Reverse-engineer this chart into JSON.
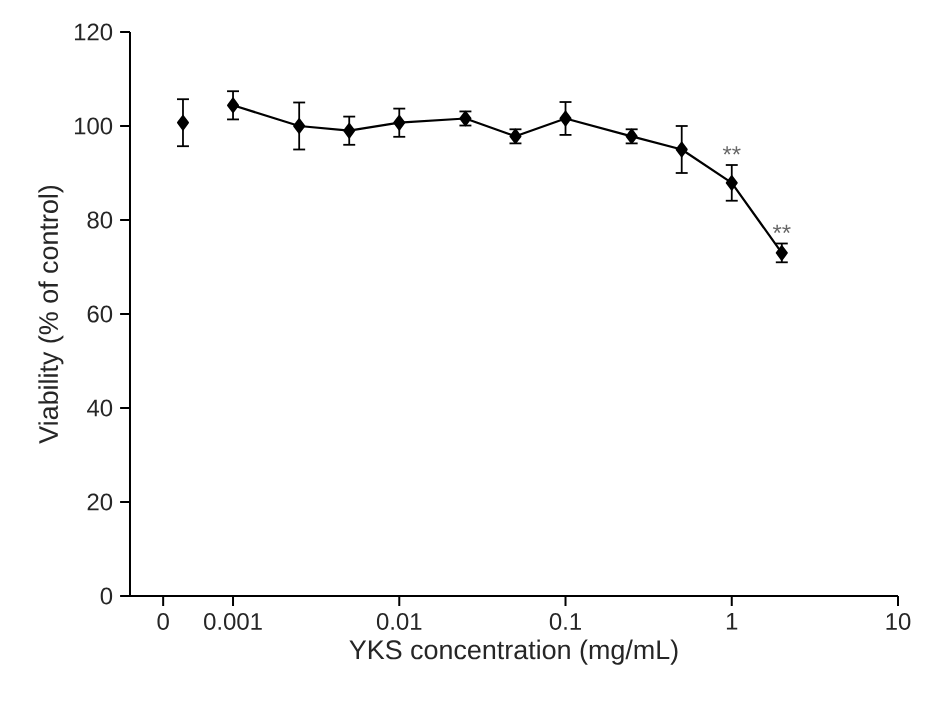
{
  "chart_data": {
    "type": "line",
    "xlabel": "YKS concentration (mg/mL)",
    "ylabel": "Viability (% of control)",
    "log": "x",
    "xlim": [
      0.00024,
      10
    ],
    "xticks": [
      {
        "value": 0.00038,
        "label": "0"
      },
      {
        "value": 0.001,
        "label": "0.001"
      },
      {
        "value": 0.01,
        "label": "0.01"
      },
      {
        "value": 0.1,
        "label": "0.1"
      },
      {
        "value": 1,
        "label": "1"
      },
      {
        "value": 10,
        "label": "10"
      }
    ],
    "ylim": [
      0,
      120
    ],
    "yticks": [
      0,
      20,
      40,
      60,
      80,
      100,
      120
    ],
    "marker": "diamond",
    "grid": false,
    "series": [
      {
        "type": "scatter",
        "color": "#000000",
        "x": [
          0.0005
        ],
        "values": [
          100.7
        ],
        "errors": [
          5
        ]
      },
      {
        "color": "#000000",
        "x": [
          0.001,
          0.0025,
          0.005,
          0.01,
          0.025,
          0.05,
          0.1,
          0.25,
          0.5,
          1,
          2
        ],
        "values": [
          104.4,
          100,
          99,
          100.7,
          101.6,
          97.8,
          101.6,
          97.8,
          95,
          87.9,
          73
        ],
        "errors": [
          3,
          5,
          3,
          3,
          1.5,
          1.5,
          3.5,
          1.5,
          5,
          3.8,
          2
        ]
      }
    ],
    "annotations": [
      {
        "text": "**",
        "x": 1,
        "y": 91.7
      },
      {
        "text": "**",
        "x": 2,
        "y": 75
      }
    ]
  }
}
